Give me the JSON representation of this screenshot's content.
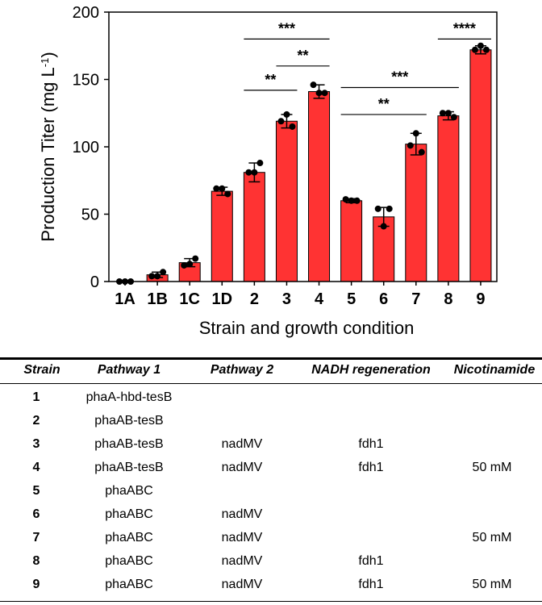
{
  "chart_data": {
    "type": "bar",
    "xlabel": "Strain and growth condition",
    "ylabel": "Production Titer (mg L",
    "ylabel_sup": "-1",
    "ylabel_close": ")",
    "ylim": [
      0,
      200
    ],
    "yticks": [
      0,
      50,
      100,
      150,
      200
    ],
    "categories": [
      "1A",
      "1B",
      "1C",
      "1D",
      "2",
      "3",
      "4",
      "5",
      "6",
      "7",
      "8",
      "9"
    ],
    "values": [
      0,
      5,
      14,
      67,
      81,
      119,
      141,
      60,
      48,
      102,
      123,
      172
    ],
    "errors": [
      0,
      2,
      3,
      3,
      7,
      5,
      5,
      1.5,
      7,
      8,
      3,
      3
    ],
    "points": [
      [
        0,
        0,
        0
      ],
      [
        4,
        4,
        7
      ],
      [
        12,
        13,
        17
      ],
      [
        69,
        69,
        65
      ],
      [
        81,
        81,
        88
      ],
      [
        119,
        124,
        115
      ],
      [
        146,
        140,
        140
      ],
      [
        61,
        60,
        60
      ],
      [
        54,
        41,
        54
      ],
      [
        101,
        110,
        96
      ],
      [
        125,
        125,
        122
      ],
      [
        172,
        175,
        172
      ]
    ],
    "significance": [
      {
        "from": "2",
        "to": "4",
        "label": "***",
        "y": 180
      },
      {
        "from": "2",
        "to": "3",
        "label": "**",
        "y": 142
      },
      {
        "from": "3",
        "to": "4",
        "label": "**",
        "y": 160
      },
      {
        "from": "5",
        "to": "8",
        "label": "***",
        "y": 144
      },
      {
        "from": "5",
        "to": "7",
        "label": "**",
        "y": 124
      },
      {
        "from": "8",
        "to": "9",
        "label": "****",
        "y": 180
      }
    ],
    "bar_color": "#ff3333",
    "grid": false
  },
  "table": {
    "headers": [
      "Strain",
      "Pathway 1",
      "Pathway 2",
      "NADH regeneration",
      "Nicotinamide"
    ],
    "rows": [
      [
        "1",
        "phaA-hbd-tesB",
        "",
        "",
        ""
      ],
      [
        "2",
        "phaAB-tesB",
        "",
        "",
        ""
      ],
      [
        "3",
        "phaAB-tesB",
        "nadMV",
        "fdh1",
        ""
      ],
      [
        "4",
        "phaAB-tesB",
        "nadMV",
        "fdh1",
        "50 mM"
      ],
      [
        "5",
        "phaABC",
        "",
        "",
        ""
      ],
      [
        "6",
        "phaABC",
        "nadMV",
        "",
        ""
      ],
      [
        "7",
        "phaABC",
        "nadMV",
        "",
        "50 mM"
      ],
      [
        "8",
        "phaABC",
        "nadMV",
        "fdh1",
        ""
      ],
      [
        "9",
        "phaABC",
        "nadMV",
        "fdh1",
        "50 mM"
      ]
    ]
  }
}
